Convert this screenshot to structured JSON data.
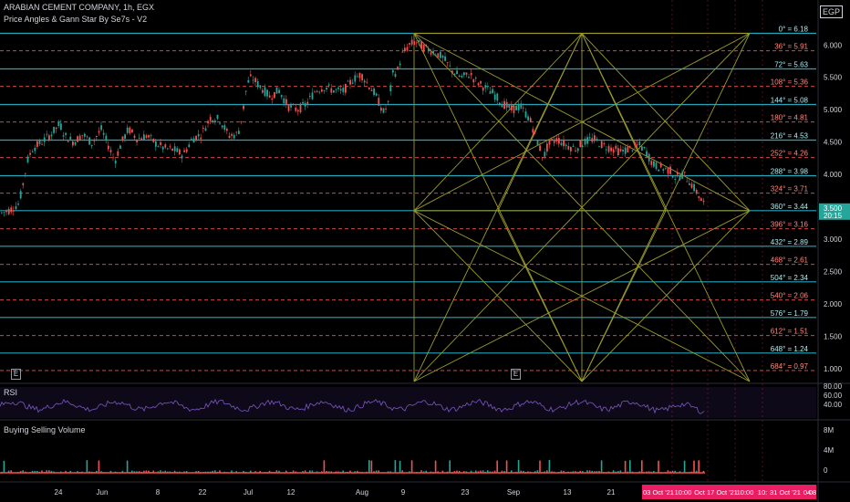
{
  "header": {
    "title": "ARABIAN CEMENT COMPANY, 1h, EGX",
    "indicator": "Price Angles & Gann Star By Se7s - V2",
    "currency": "EGP"
  },
  "events": [
    "E",
    "E"
  ],
  "panes": {
    "rsi_label": "RSI",
    "volume_label": "Buying Selling Volume"
  },
  "colors": {
    "background": "#000000",
    "up": "#26a69a",
    "down": "#ef5350",
    "solid_level": "#26a6b8",
    "dashed_level": "#ef5350",
    "gann": "#9a9a2e",
    "rsi_line": "#7e57c2",
    "time_highlight": "#e91e63",
    "current_price_box": "#26a69a"
  },
  "chart_data": {
    "type": "candlestick",
    "ylim": [
      0.8,
      6.3
    ],
    "yticks": [
      "6.000",
      "5.500",
      "5.000",
      "4.500",
      "4.000",
      "3.500",
      "3.000",
      "2.500",
      "2.000",
      "1.500",
      "1.000"
    ],
    "xticks": [
      "24",
      "Jun",
      "8",
      "22",
      "Jul",
      "12",
      "Aug",
      "9",
      "23",
      "Sep",
      "13",
      "21"
    ],
    "time_highlights": [
      "03 Oct '21",
      "10:00",
      "Oct",
      "17 Oct '21",
      "10:00",
      "10:",
      "31 Oct '21",
      "04 ",
      "08"
    ],
    "current_price": "3.500",
    "countdown": "20:15",
    "price_path": [
      [
        0,
        3.4
      ],
      [
        10,
        3.45
      ],
      [
        20,
        3.55
      ],
      [
        25,
        3.9
      ],
      [
        30,
        4.25
      ],
      [
        35,
        4.4
      ],
      [
        45,
        4.5
      ],
      [
        55,
        4.62
      ],
      [
        65,
        4.78
      ],
      [
        70,
        4.6
      ],
      [
        80,
        4.5
      ],
      [
        90,
        4.62
      ],
      [
        100,
        4.48
      ],
      [
        110,
        4.7
      ],
      [
        118,
        4.45
      ],
      [
        125,
        4.2
      ],
      [
        132,
        4.48
      ],
      [
        140,
        4.7
      ],
      [
        150,
        4.55
      ],
      [
        160,
        4.6
      ],
      [
        170,
        4.48
      ],
      [
        180,
        4.4
      ],
      [
        190,
        4.38
      ],
      [
        200,
        4.3
      ],
      [
        210,
        4.55
      ],
      [
        220,
        4.62
      ],
      [
        230,
        4.88
      ],
      [
        240,
        4.85
      ],
      [
        250,
        4.6
      ],
      [
        260,
        4.62
      ],
      [
        265,
        4.92
      ],
      [
        270,
        5.4
      ],
      [
        275,
        5.5
      ],
      [
        285,
        5.35
      ],
      [
        295,
        5.2
      ],
      [
        305,
        5.3
      ],
      [
        315,
        5.05
      ],
      [
        325,
        5.0
      ],
      [
        335,
        5.08
      ],
      [
        345,
        5.3
      ],
      [
        355,
        5.35
      ],
      [
        365,
        5.3
      ],
      [
        375,
        5.28
      ],
      [
        385,
        5.45
      ],
      [
        395,
        5.55
      ],
      [
        400,
        5.45
      ],
      [
        410,
        5.25
      ],
      [
        415,
        5.1
      ],
      [
        420,
        4.95
      ],
      [
        425,
        5.1
      ],
      [
        430,
        5.55
      ],
      [
        435,
        5.6
      ],
      [
        440,
        5.85
      ],
      [
        448,
        6.0
      ],
      [
        455,
        6.05
      ],
      [
        465,
        5.95
      ],
      [
        475,
        5.9
      ],
      [
        485,
        5.8
      ],
      [
        495,
        5.6
      ],
      [
        505,
        5.5
      ],
      [
        515,
        5.55
      ],
      [
        520,
        5.45
      ],
      [
        530,
        5.35
      ],
      [
        540,
        5.25
      ],
      [
        550,
        5.1
      ],
      [
        560,
        5.0
      ],
      [
        570,
        5.05
      ],
      [
        580,
        4.85
      ],
      [
        590,
        4.45
      ],
      [
        595,
        4.25
      ],
      [
        600,
        4.45
      ],
      [
        610,
        4.55
      ],
      [
        620,
        4.45
      ],
      [
        630,
        4.4
      ],
      [
        640,
        4.5
      ],
      [
        650,
        4.55
      ],
      [
        660,
        4.45
      ],
      [
        670,
        4.4
      ],
      [
        680,
        4.35
      ],
      [
        690,
        4.4
      ],
      [
        700,
        4.45
      ],
      [
        708,
        4.35
      ],
      [
        715,
        4.15
      ],
      [
        725,
        4.1
      ],
      [
        735,
        4.05
      ],
      [
        740,
        3.95
      ],
      [
        748,
        4.0
      ],
      [
        755,
        3.9
      ],
      [
        762,
        3.75
      ],
      [
        768,
        3.6
      ],
      [
        773,
        3.5
      ]
    ],
    "gann_levels": [
      {
        "label": "0° = 6.18",
        "value": 6.18,
        "style": "solid"
      },
      {
        "label": "36° = 5.91",
        "value": 5.91,
        "style": "dashed"
      },
      {
        "label": "72° = 5.63",
        "value": 5.63,
        "style": "solid"
      },
      {
        "label": "108° = 5.36",
        "value": 5.36,
        "style": "dashed"
      },
      {
        "label": "144° = 5.08",
        "value": 5.08,
        "style": "solid"
      },
      {
        "label": "180° = 4.81",
        "value": 4.81,
        "style": "dashed"
      },
      {
        "label": "216° = 4.53",
        "value": 4.53,
        "style": "solid"
      },
      {
        "label": "252° = 4.26",
        "value": 4.26,
        "style": "dashed"
      },
      {
        "label": "288° = 3.98",
        "value": 3.98,
        "style": "solid"
      },
      {
        "label": "324° = 3.71",
        "value": 3.71,
        "style": "dashed"
      },
      {
        "label": "360° = 3.44",
        "value": 3.44,
        "style": "solid"
      },
      {
        "label": "396° = 3.16",
        "value": 3.16,
        "style": "dashed"
      },
      {
        "label": "432° = 2.89",
        "value": 2.89,
        "style": "solid"
      },
      {
        "label": "468° = 2.61",
        "value": 2.61,
        "style": "dashed"
      },
      {
        "label": "504° = 2.34",
        "value": 2.34,
        "style": "solid"
      },
      {
        "label": "540° = 2.06",
        "value": 2.06,
        "style": "dashed"
      },
      {
        "label": "576° = 1.79",
        "value": 1.79,
        "style": "solid"
      },
      {
        "label": "612° = 1.51",
        "value": 1.51,
        "style": "dashed"
      },
      {
        "label": "648° = 1.24",
        "value": 1.24,
        "style": "solid"
      },
      {
        "label": "684° = 0.97",
        "value": 0.97,
        "style": "dashed"
      }
    ],
    "rsi": {
      "yticks": [
        "80.00",
        "60.00",
        "40.00"
      ],
      "ylim": [
        0,
        100
      ]
    },
    "volume": {
      "yticks": [
        "8M",
        "4M",
        "0"
      ]
    }
  }
}
